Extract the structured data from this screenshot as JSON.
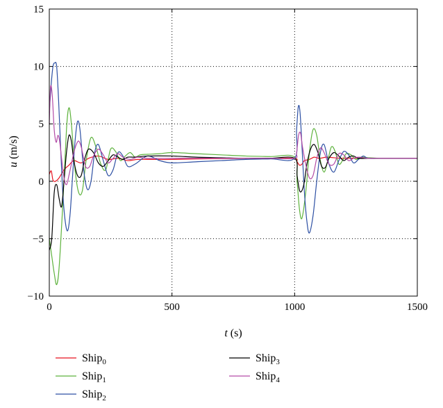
{
  "chart_data": {
    "type": "line",
    "xlabel_var": "t",
    "xlabel_unit": " (s)",
    "ylabel_var": "u",
    "ylabel_unit": " (m/s)",
    "xlim": [
      0,
      1500
    ],
    "ylim": [
      -10,
      15
    ],
    "xticks": [
      0,
      500,
      1000,
      1500
    ],
    "yticks": [
      -10,
      -5,
      0,
      5,
      10,
      15
    ],
    "xtick_labels": [
      "0",
      "500",
      "1000",
      "1500"
    ],
    "ytick_labels": [
      "−10",
      "−5",
      "0",
      "5",
      "10",
      "15"
    ],
    "grid": "dotted",
    "legend_position": "bottom",
    "series": [
      {
        "name": "Ship",
        "sub": "0",
        "color": "#e8121f",
        "x": [
          0,
          8,
          15,
          25,
          40,
          60,
          80,
          100,
          130,
          160,
          200,
          240,
          280,
          320,
          360,
          420,
          500,
          600,
          700,
          800,
          900,
          1000,
          1010,
          1020,
          1030,
          1040,
          1060,
          1080,
          1100,
          1130,
          1160,
          1200,
          1250,
          1300,
          1400,
          1500
        ],
        "y": [
          0.6,
          0.9,
          0.1,
          0.0,
          0.3,
          1.0,
          1.4,
          1.8,
          1.6,
          2.0,
          2.2,
          1.9,
          2.0,
          1.8,
          1.9,
          1.9,
          1.9,
          1.95,
          1.98,
          1.99,
          2.0,
          2.0,
          1.7,
          1.4,
          1.5,
          1.8,
          1.9,
          2.1,
          2.0,
          2.1,
          2.05,
          2.0,
          2.02,
          2.0,
          2.0,
          2.0
        ]
      },
      {
        "name": "Ship",
        "sub": "1",
        "color": "#5db23c",
        "x": [
          0,
          10,
          20,
          30,
          40,
          55,
          70,
          80,
          90,
          105,
          120,
          135,
          150,
          170,
          190,
          210,
          230,
          250,
          270,
          290,
          310,
          330,
          350,
          370,
          400,
          450,
          500,
          600,
          700,
          800,
          900,
          1000,
          1010,
          1020,
          1030,
          1045,
          1060,
          1075,
          1090,
          1105,
          1120,
          1135,
          1150,
          1165,
          1180,
          1195,
          1210,
          1230,
          1250,
          1270,
          1300,
          1350,
          1400,
          1500
        ],
        "y": [
          -5.0,
          -6.5,
          -8.0,
          -9.0,
          -7.5,
          -2.0,
          4.5,
          6.4,
          5.0,
          1.0,
          -1.0,
          -0.8,
          1.8,
          3.8,
          3.0,
          1.5,
          1.0,
          2.8,
          2.6,
          1.8,
          2.2,
          2.5,
          2.1,
          2.3,
          2.35,
          2.4,
          2.5,
          2.4,
          2.3,
          2.2,
          2.15,
          2.1,
          0.0,
          -2.5,
          -3.2,
          -1.0,
          2.5,
          4.5,
          4.0,
          1.8,
          0.8,
          1.8,
          3.0,
          2.6,
          1.5,
          1.8,
          2.4,
          2.3,
          1.9,
          2.1,
          2.05,
          2.0,
          2.0,
          2.0
        ]
      },
      {
        "name": "Ship",
        "sub": "2",
        "color": "#2c4fa3",
        "x": [
          0,
          8,
          15,
          22,
          30,
          38,
          45,
          55,
          65,
          75,
          85,
          95,
          105,
          115,
          125,
          140,
          155,
          170,
          185,
          200,
          220,
          240,
          260,
          280,
          300,
          320,
          350,
          400,
          450,
          500,
          600,
          700,
          800,
          900,
          1000,
          1008,
          1015,
          1022,
          1030,
          1040,
          1050,
          1060,
          1075,
          1090,
          1105,
          1120,
          1140,
          1160,
          1180,
          1200,
          1220,
          1240,
          1260,
          1280,
          1300,
          1350,
          1400,
          1500
        ],
        "y": [
          6.0,
          8.5,
          10.0,
          10.3,
          10.0,
          7.0,
          3.5,
          -1.0,
          -3.5,
          -4.3,
          -2.8,
          0.5,
          3.5,
          5.2,
          4.5,
          1.0,
          -0.7,
          0.0,
          2.5,
          3.2,
          1.8,
          0.5,
          1.0,
          2.5,
          2.2,
          1.3,
          1.5,
          2.2,
          1.8,
          1.6,
          1.7,
          1.8,
          1.9,
          1.95,
          2.0,
          4.5,
          6.5,
          6.0,
          3.0,
          -1.0,
          -3.5,
          -4.5,
          -3.0,
          0.0,
          2.5,
          3.2,
          1.5,
          0.8,
          1.8,
          2.6,
          2.3,
          1.6,
          1.9,
          2.2,
          2.0,
          2.0,
          2.0,
          2.0
        ]
      },
      {
        "name": "Ship",
        "sub": "3",
        "color": "#000000",
        "x": [
          0,
          10,
          20,
          30,
          40,
          50,
          60,
          70,
          80,
          90,
          100,
          115,
          130,
          145,
          160,
          180,
          200,
          220,
          240,
          260,
          280,
          300,
          320,
          350,
          400,
          500,
          600,
          700,
          800,
          900,
          1000,
          1010,
          1020,
          1030,
          1040,
          1050,
          1065,
          1080,
          1095,
          1110,
          1125,
          1140,
          1160,
          1180,
          1200,
          1220,
          1240,
          1260,
          1300,
          1350,
          1400,
          1500
        ],
        "y": [
          -6.0,
          -5.0,
          -1.0,
          -0.3,
          -1.5,
          -2.2,
          0.0,
          2.5,
          4.0,
          3.5,
          1.8,
          0.5,
          0.5,
          2.0,
          2.8,
          2.5,
          1.6,
          1.3,
          1.8,
          2.3,
          2.1,
          1.9,
          2.1,
          2.1,
          2.2,
          2.2,
          2.1,
          2.05,
          2.0,
          2.0,
          2.0,
          0.5,
          -0.8,
          -0.8,
          0.0,
          1.5,
          2.8,
          3.2,
          2.5,
          1.3,
          1.2,
          2.0,
          2.5,
          2.2,
          1.8,
          2.1,
          2.2,
          2.0,
          2.0,
          2.0,
          2.0,
          2.0
        ]
      },
      {
        "name": "Ship",
        "sub": "4",
        "color": "#b34aa6",
        "x": [
          0,
          5,
          12,
          20,
          28,
          35,
          42,
          50,
          60,
          70,
          80,
          90,
          100,
          110,
          120,
          130,
          140,
          150,
          165,
          180,
          200,
          220,
          240,
          260,
          280,
          300,
          330,
          360,
          400,
          500,
          600,
          700,
          800,
          900,
          1000,
          1008,
          1016,
          1024,
          1032,
          1045,
          1060,
          1075,
          1090,
          1105,
          1120,
          1140,
          1160,
          1180,
          1200,
          1220,
          1240,
          1260,
          1300,
          1350,
          1400,
          1500
        ],
        "y": [
          5.0,
          8.2,
          7.5,
          4.5,
          3.4,
          4.0,
          3.5,
          2.0,
          0.3,
          -0.3,
          0.5,
          1.5,
          2.5,
          3.2,
          3.5,
          3.0,
          2.0,
          1.2,
          1.3,
          2.2,
          2.8,
          2.3,
          1.6,
          2.0,
          2.4,
          2.1,
          1.9,
          2.1,
          2.0,
          2.0,
          2.0,
          2.0,
          2.0,
          2.0,
          2.0,
          2.5,
          4.0,
          4.2,
          3.0,
          1.5,
          0.3,
          0.5,
          2.0,
          2.9,
          2.5,
          1.5,
          1.5,
          2.4,
          2.3,
          1.8,
          2.0,
          2.1,
          2.0,
          2.0,
          2.0,
          2.0
        ]
      }
    ]
  }
}
